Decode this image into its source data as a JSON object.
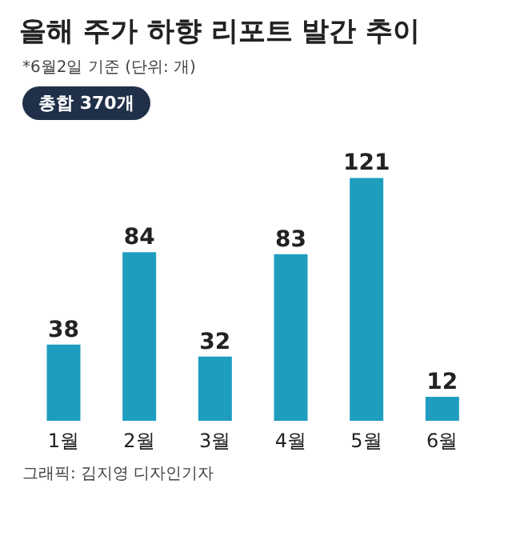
{
  "chart_data": {
    "type": "bar",
    "title": "올해 주가 하향 리포트 발간 추이",
    "subtitle": "*6월2일 기준 (단위: 개)",
    "categories": [
      "1월",
      "2월",
      "3월",
      "4월",
      "5월",
      "6월"
    ],
    "values": [
      38,
      84,
      32,
      83,
      121,
      12
    ],
    "color": "#1e9dbf",
    "data_labels": true,
    "grid": false,
    "legend": false,
    "annotations": [
      "총합 370개",
      "그래픽: 김지영 디자인기자"
    ]
  }
}
